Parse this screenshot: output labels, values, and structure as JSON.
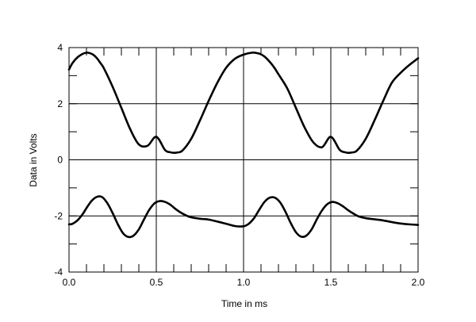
{
  "chart_data": {
    "type": "line",
    "title": "",
    "xlabel": "Time in ms",
    "ylabel": "Data in Volts",
    "xlim": [
      0,
      2.0
    ],
    "ylim": [
      -4,
      4
    ],
    "x_ticks": [
      "0.0",
      "0.5",
      "1.0",
      "1.5",
      "2.0"
    ],
    "y_ticks": [
      "4",
      "2",
      "0",
      "-2",
      "-4"
    ],
    "x_tick_values": [
      0,
      0.5,
      1.0,
      1.5,
      2.0
    ],
    "y_tick_values": [
      4,
      2,
      0,
      -2,
      -4
    ],
    "grid": true,
    "legend": "none",
    "line_color": "#000000",
    "series": [
      {
        "x": [
          0,
          0.02,
          0.05,
          0.08,
          0.1,
          0.12,
          0.14,
          0.16,
          0.18,
          0.2,
          0.25,
          0.3,
          0.35,
          0.4,
          0.45,
          0.5,
          0.55,
          0.58,
          0.6,
          0.62,
          0.65,
          0.7,
          0.75,
          0.8,
          0.85,
          0.9,
          0.95,
          1.0,
          1.05,
          1.08,
          1.1,
          1.12,
          1.14,
          1.16,
          1.18,
          1.2,
          1.25,
          1.3,
          1.35,
          1.4,
          1.45,
          1.5,
          1.55,
          1.58,
          1.6,
          1.62,
          1.65,
          1.7,
          1.75,
          1.8,
          1.85,
          1.9,
          1.95,
          2.0
        ],
        "values": [
          3.22,
          3.45,
          3.66,
          3.78,
          3.82,
          3.8,
          3.74,
          3.62,
          3.45,
          3.26,
          2.6,
          1.85,
          1.1,
          0.55,
          0.5,
          0.82,
          0.35,
          0.27,
          0.25,
          0.26,
          0.33,
          0.75,
          1.4,
          2.1,
          2.75,
          3.28,
          3.6,
          3.75,
          3.82,
          3.8,
          3.76,
          3.68,
          3.56,
          3.42,
          3.25,
          3.05,
          2.55,
          1.85,
          1.15,
          0.62,
          0.45,
          0.82,
          0.36,
          0.27,
          0.25,
          0.26,
          0.33,
          0.75,
          1.4,
          2.1,
          2.75,
          3.1,
          3.38,
          3.62
        ]
      },
      {
        "x": [
          0,
          0.02,
          0.05,
          0.08,
          0.1,
          0.13,
          0.16,
          0.19,
          0.22,
          0.25,
          0.28,
          0.31,
          0.34,
          0.37,
          0.4,
          0.43,
          0.46,
          0.49,
          0.52,
          0.55,
          0.58,
          0.61,
          0.64,
          0.67,
          0.7,
          0.75,
          0.8,
          0.85,
          0.9,
          0.95,
          1.0,
          1.03,
          1.06,
          1.09,
          1.12,
          1.15,
          1.18,
          1.21,
          1.24,
          1.27,
          1.3,
          1.33,
          1.36,
          1.39,
          1.42,
          1.45,
          1.48,
          1.51,
          1.54,
          1.57,
          1.6,
          1.63,
          1.66,
          1.7,
          1.75,
          1.8,
          1.85,
          1.9,
          1.95,
          2.0
        ],
        "values": [
          -2.3,
          -2.28,
          -2.15,
          -1.92,
          -1.72,
          -1.46,
          -1.32,
          -1.33,
          -1.55,
          -1.9,
          -2.3,
          -2.62,
          -2.75,
          -2.7,
          -2.48,
          -2.12,
          -1.78,
          -1.55,
          -1.47,
          -1.5,
          -1.6,
          -1.75,
          -1.88,
          -1.98,
          -2.05,
          -2.1,
          -2.13,
          -2.2,
          -2.28,
          -2.36,
          -2.37,
          -2.28,
          -2.08,
          -1.78,
          -1.5,
          -1.35,
          -1.35,
          -1.52,
          -1.85,
          -2.25,
          -2.58,
          -2.74,
          -2.7,
          -2.48,
          -2.12,
          -1.8,
          -1.58,
          -1.5,
          -1.55,
          -1.66,
          -1.8,
          -1.92,
          -2.02,
          -2.08,
          -2.12,
          -2.16,
          -2.22,
          -2.27,
          -2.3,
          -2.32
        ]
      }
    ]
  }
}
